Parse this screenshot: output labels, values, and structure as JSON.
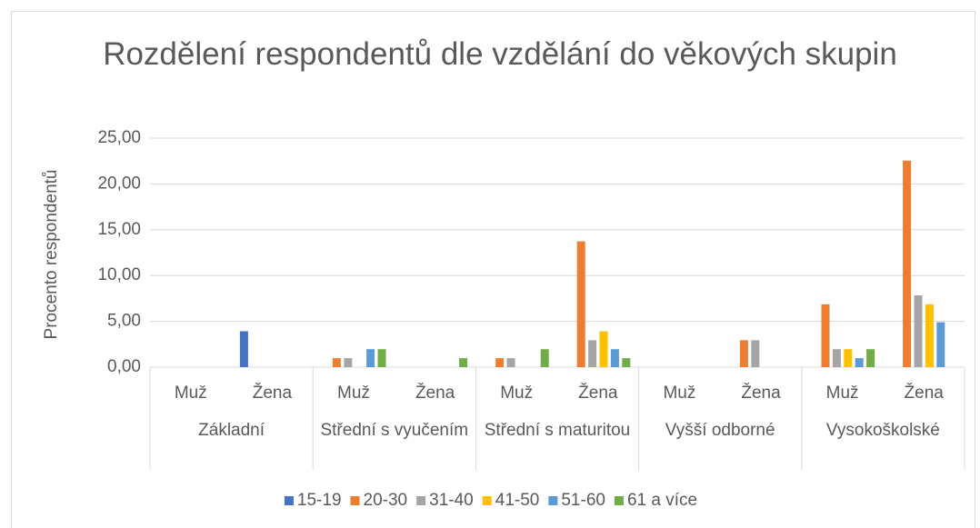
{
  "chart_data": {
    "type": "bar",
    "title": "Rozdělení respondentů dle vzdělání do věkových skupin",
    "y_label": "Procento respondentů",
    "categories": [
      "Muž",
      "Žena",
      "Muž",
      "Žena",
      "Muž",
      "Žena",
      "Muž",
      "Žena",
      "Muž",
      "Žena"
    ],
    "groups": [
      "Základní",
      "Střední s vyučením",
      "Střední s maturitou",
      "Vyšší odborné",
      "Vysokoškolské"
    ],
    "series": [
      {
        "name": "15-19",
        "color": "#4472c4",
        "values": [
          0,
          3.92,
          0,
          0,
          0,
          0,
          0,
          0,
          0,
          0
        ]
      },
      {
        "name": "20-30",
        "color": "#ed7d31",
        "values": [
          0,
          0,
          0.98,
          0,
          0.98,
          13.73,
          0,
          2.94,
          6.86,
          22.55
        ]
      },
      {
        "name": "31-40",
        "color": "#a5a5a5",
        "values": [
          0,
          0,
          0.98,
          0,
          0.98,
          2.94,
          0,
          2.94,
          1.96,
          7.84
        ]
      },
      {
        "name": "41-50",
        "color": "#ffc000",
        "values": [
          0,
          0,
          0,
          0,
          0,
          3.92,
          0,
          0,
          1.96,
          6.86
        ]
      },
      {
        "name": "51-60",
        "color": "#5b9bd5",
        "values": [
          0,
          0,
          1.96,
          0,
          0,
          1.96,
          0,
          0,
          0.98,
          4.9
        ]
      },
      {
        "name": "61 a více",
        "color": "#70ad47",
        "values": [
          0,
          0,
          1.96,
          0.98,
          1.96,
          0.98,
          0,
          0,
          1.96,
          0
        ]
      }
    ],
    "ylim": [
      0,
      25
    ],
    "yticks": [
      {
        "value": 0,
        "label": "0,00"
      },
      {
        "value": 5,
        "label": "5,00"
      },
      {
        "value": 10,
        "label": "10,00"
      },
      {
        "value": 15,
        "label": "15,00"
      },
      {
        "value": 20,
        "label": "20,00"
      },
      {
        "value": 25,
        "label": "25,00"
      }
    ],
    "grid": true
  }
}
